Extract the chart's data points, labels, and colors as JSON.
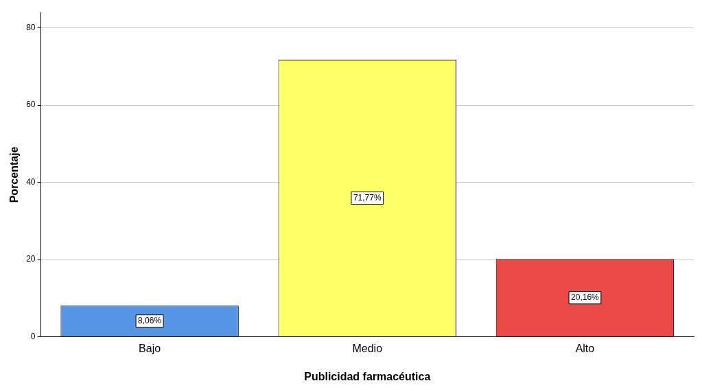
{
  "chart_data": {
    "type": "bar",
    "xlabel": "Publicidad farmacéutica",
    "ylabel": "Porcentaje",
    "categories": [
      "Bajo",
      "Medio",
      "Alto"
    ],
    "values": [
      8.06,
      71.77,
      20.16
    ],
    "colors": [
      "#5596e6",
      "#ffff66",
      "#eb4848"
    ],
    "value_labels": [
      "8,06%",
      "71,77%",
      "20,16%"
    ],
    "ylim": [
      0,
      84
    ],
    "yticks": [
      0,
      20,
      40,
      60,
      80
    ],
    "grid": "y",
    "legend": false
  }
}
